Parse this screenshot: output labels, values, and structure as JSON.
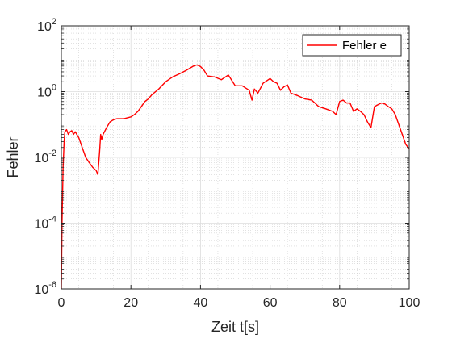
{
  "chart_data": {
    "type": "line",
    "xlabel": "Zeit t[s]",
    "ylabel": "Fehler",
    "xlim": [
      0,
      100
    ],
    "ylim": [
      1e-06,
      100
    ],
    "yscale": "log",
    "x_ticks": [
      {
        "value": 0,
        "label": "0"
      },
      {
        "value": 20,
        "label": "20"
      },
      {
        "value": 40,
        "label": "40"
      },
      {
        "value": 60,
        "label": "60"
      },
      {
        "value": 80,
        "label": "80"
      },
      {
        "value": 100,
        "label": "100"
      }
    ],
    "y_ticks": [
      {
        "exp": -6,
        "base": "10",
        "sup": "-6"
      },
      {
        "exp": -4,
        "base": "10",
        "sup": "-4"
      },
      {
        "exp": -2,
        "base": "10",
        "sup": "-2"
      },
      {
        "exp": 0,
        "base": "10",
        "sup": "0"
      },
      {
        "exp": 2,
        "base": "10",
        "sup": "2"
      }
    ],
    "grid": true,
    "minor_grid": true,
    "legend": {
      "position": "top-right",
      "entries": [
        "Fehler e"
      ]
    },
    "series": [
      {
        "name": "Fehler e",
        "color": "#ff0000",
        "x": [
          0,
          0.2,
          0.5,
          0.8,
          1,
          1.5,
          2,
          2.5,
          3,
          3.5,
          4,
          5,
          6,
          7,
          8,
          9,
          10,
          10.5,
          11,
          11.3,
          11.6,
          12,
          13,
          14,
          15,
          16,
          18,
          20,
          21,
          22,
          23,
          24,
          25,
          26,
          28,
          30,
          32,
          34,
          36,
          38,
          39,
          40,
          41,
          42,
          44,
          46,
          48,
          50,
          52,
          54,
          54.8,
          55.5,
          56.5,
          58,
          60,
          61,
          62,
          63,
          64,
          65,
          66,
          68,
          70,
          72,
          74,
          76,
          78,
          79,
          80,
          81,
          82,
          83,
          84,
          85,
          86,
          87,
          88,
          89,
          90,
          91,
          92,
          93,
          94,
          95,
          96,
          97,
          98,
          99,
          100
        ],
        "y": [
          1e-06,
          0.0001,
          0.005,
          0.03,
          0.06,
          0.07,
          0.05,
          0.06,
          0.065,
          0.05,
          0.06,
          0.04,
          0.02,
          0.01,
          0.007,
          0.005,
          0.004,
          0.003,
          0.015,
          0.05,
          0.035,
          0.05,
          0.08,
          0.12,
          0.14,
          0.15,
          0.15,
          0.17,
          0.2,
          0.25,
          0.35,
          0.5,
          0.6,
          0.8,
          1.2,
          2.0,
          2.8,
          3.5,
          4.5,
          6.0,
          6.5,
          5.8,
          4.5,
          3.0,
          2.8,
          2.3,
          3.2,
          1.5,
          1.5,
          1.1,
          0.55,
          1.2,
          0.9,
          1.8,
          2.5,
          2.0,
          1.8,
          1.1,
          1.4,
          1.6,
          0.9,
          0.75,
          0.6,
          0.55,
          0.35,
          0.3,
          0.25,
          0.2,
          0.5,
          0.55,
          0.45,
          0.45,
          0.25,
          0.3,
          0.25,
          0.2,
          0.12,
          0.08,
          0.35,
          0.4,
          0.45,
          0.42,
          0.35,
          0.3,
          0.2,
          0.1,
          0.05,
          0.025,
          0.018
        ]
      }
    ]
  }
}
